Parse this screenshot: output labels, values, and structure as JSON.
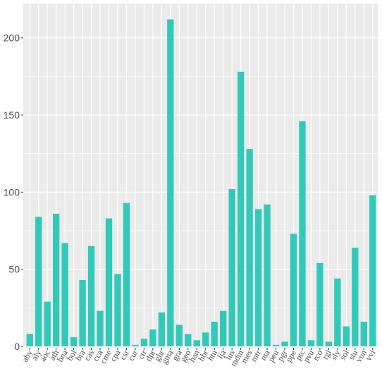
{
  "chart_data": {
    "type": "bar",
    "title": "",
    "xlabel": "",
    "ylabel": "",
    "ylim": [
      0,
      220
    ],
    "yticks": [
      0,
      50,
      100,
      150,
      200
    ],
    "grid": true,
    "bar_color": "#33C9B9",
    "panel_color": "#EBEBEB",
    "grid_color": "#FFFFFF",
    "categories": [
      "aby",
      "aly",
      "aoc",
      "ath",
      "bna",
      "bol",
      "bra",
      "cas",
      "cca",
      "cme",
      "cpa",
      "csr",
      "cur",
      "ctr",
      "dpr",
      "ghr",
      "gma",
      "gra",
      "geo",
      "han",
      "hbr",
      "htu",
      "lja",
      "lus",
      "mdm",
      "mes",
      "mtr",
      "nta",
      "peu",
      "pgr",
      "ppe",
      "ptc",
      "pvu",
      "rco",
      "rgl",
      "sly",
      "sol",
      "stu",
      "vun",
      "vvi"
    ],
    "values": [
      8,
      84,
      29,
      86,
      67,
      6,
      43,
      65,
      23,
      83,
      47,
      93,
      1,
      5,
      11,
      22,
      212,
      14,
      8,
      4,
      9,
      16,
      23,
      102,
      178,
      128,
      89,
      92,
      1,
      3,
      73,
      146,
      4,
      54,
      3,
      44,
      13,
      64,
      16,
      98
    ]
  }
}
